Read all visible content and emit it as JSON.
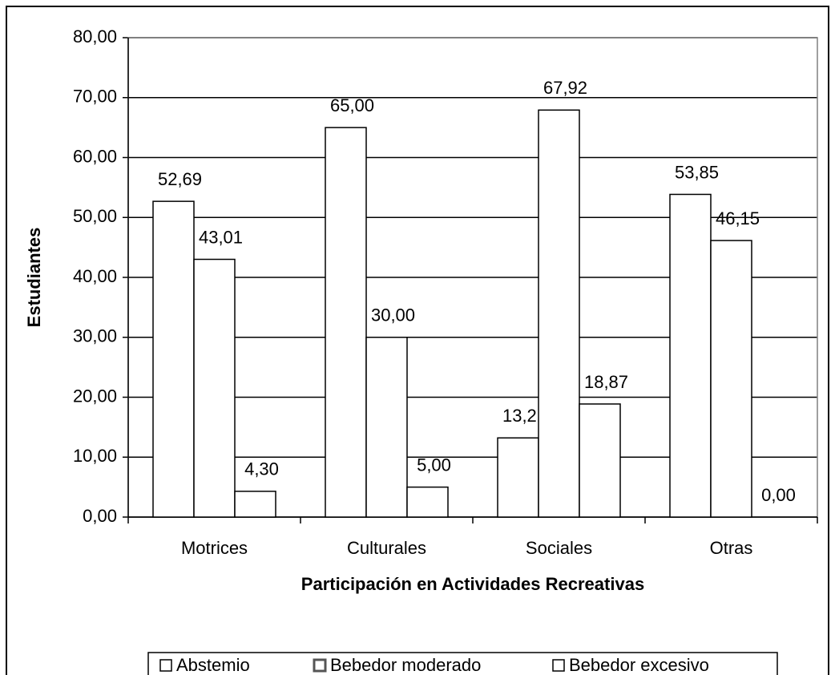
{
  "chart_data": {
    "type": "bar",
    "x_label": "Participación en Actividades Recreativas",
    "y_label": "Estudiantes",
    "categories": [
      "Motrices",
      "Culturales",
      "Sociales",
      "Otras"
    ],
    "series": [
      {
        "name": "Abstemio",
        "color": "#ffffff",
        "values": [
          52.69,
          65.0,
          13.21,
          53.85
        ],
        "value_labels": [
          "52,69",
          "65,00",
          "13,21",
          "53,85"
        ]
      },
      {
        "name": "Bebedor moderado",
        "color": "#ffffff",
        "values": [
          43.01,
          30.0,
          67.92,
          46.15
        ],
        "value_labels": [
          "43,01",
          "30,00",
          "67,92",
          "46,15"
        ]
      },
      {
        "name": "Bebedor excesivo",
        "color": "#ffffff",
        "values": [
          4.3,
          5.0,
          18.87,
          0.0
        ],
        "value_labels": [
          "4,30",
          "5,00",
          "18,87",
          "0,00"
        ]
      }
    ],
    "ylim": [
      0,
      80
    ],
    "yticks": [
      {
        "value": 0,
        "label": "0,00"
      },
      {
        "value": 10,
        "label": "10,00"
      },
      {
        "value": 20,
        "label": "20,00"
      },
      {
        "value": 30,
        "label": "30,00"
      },
      {
        "value": 40,
        "label": "40,00"
      },
      {
        "value": 50,
        "label": "50,00"
      },
      {
        "value": 60,
        "label": "60,00"
      },
      {
        "value": 70,
        "label": "70,00"
      },
      {
        "value": 80,
        "label": "80,00"
      }
    ],
    "grid": true,
    "legend": "bottom"
  }
}
